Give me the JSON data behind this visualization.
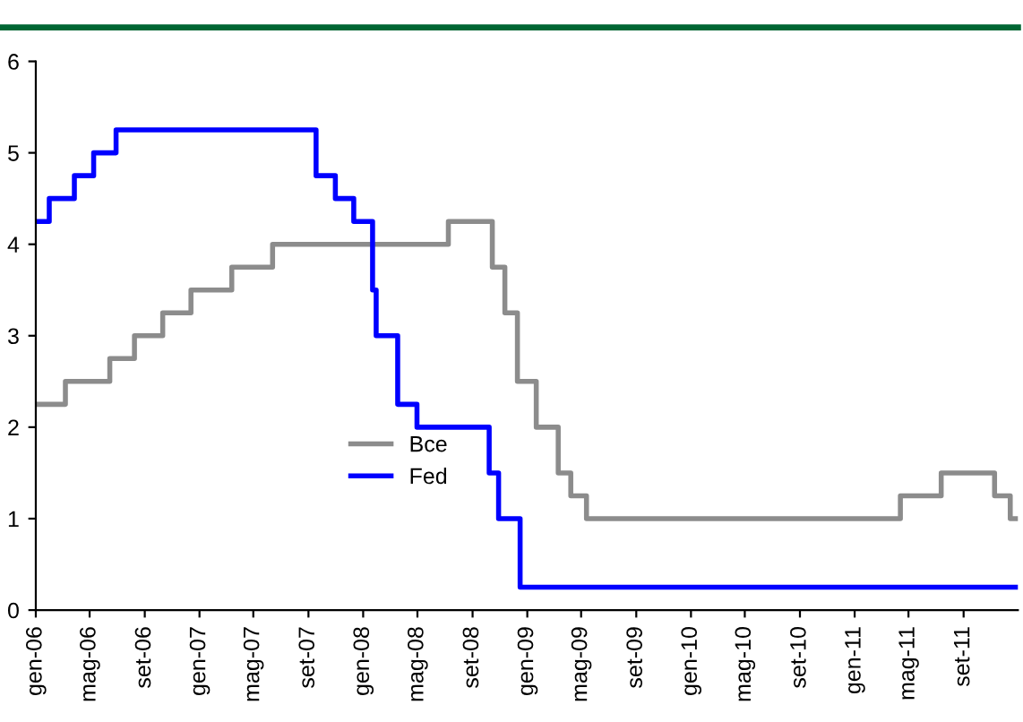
{
  "chart_data": {
    "type": "step",
    "series": [
      {
        "name": "Bce",
        "color": "#8c8c8c",
        "x": [
          "2006-01-01",
          "2006-03-08",
          "2006-06-15",
          "2006-08-09",
          "2006-10-11",
          "2006-12-13",
          "2007-03-14",
          "2007-06-13",
          "2008-07-09",
          "2008-10-15",
          "2008-11-12",
          "2008-12-10",
          "2009-01-21",
          "2009-03-11",
          "2009-04-08",
          "2009-05-13",
          "2011-04-13",
          "2011-07-13",
          "2011-11-09",
          "2011-12-14",
          "2011-12-31"
        ],
        "values": [
          2.25,
          2.5,
          2.75,
          3.0,
          3.25,
          3.5,
          3.75,
          4.0,
          4.25,
          3.75,
          3.25,
          2.5,
          2.0,
          1.5,
          1.25,
          1.0,
          1.25,
          1.5,
          1.25,
          1.0,
          1.0
        ]
      },
      {
        "name": "Fed",
        "color": "#0000ff",
        "x": [
          "2006-01-01",
          "2006-01-31",
          "2006-03-28",
          "2006-05-10",
          "2006-06-29",
          "2007-09-18",
          "2007-10-31",
          "2007-12-11",
          "2008-01-22",
          "2008-01-30",
          "2008-03-18",
          "2008-04-30",
          "2008-10-08",
          "2008-10-29",
          "2008-12-16",
          "2011-12-31"
        ],
        "values": [
          4.25,
          4.5,
          4.75,
          5.0,
          5.25,
          4.75,
          4.5,
          4.25,
          3.5,
          3.0,
          2.25,
          2.0,
          1.5,
          1.0,
          0.25,
          0.25
        ]
      }
    ],
    "xlim": [
      "2006-01-01",
      "2011-12-31"
    ],
    "xticks": [
      {
        "value": "2006-01-01",
        "label": "gen-06"
      },
      {
        "value": "2006-05-01",
        "label": "mag-06"
      },
      {
        "value": "2006-09-01",
        "label": "set-06"
      },
      {
        "value": "2007-01-01",
        "label": "gen-07"
      },
      {
        "value": "2007-05-01",
        "label": "mag-07"
      },
      {
        "value": "2007-09-01",
        "label": "set-07"
      },
      {
        "value": "2008-01-01",
        "label": "gen-08"
      },
      {
        "value": "2008-05-01",
        "label": "mag-08"
      },
      {
        "value": "2008-09-01",
        "label": "set-08"
      },
      {
        "value": "2009-01-01",
        "label": "gen-09"
      },
      {
        "value": "2009-05-01",
        "label": "mag-09"
      },
      {
        "value": "2009-09-01",
        "label": "set-09"
      },
      {
        "value": "2010-01-01",
        "label": "gen-10"
      },
      {
        "value": "2010-05-01",
        "label": "mag-10"
      },
      {
        "value": "2010-09-01",
        "label": "set-10"
      },
      {
        "value": "2011-01-01",
        "label": "gen-11"
      },
      {
        "value": "2011-05-01",
        "label": "mag-11"
      },
      {
        "value": "2011-09-01",
        "label": "set-11"
      }
    ],
    "ylim": [
      0,
      6
    ],
    "yticks": [
      0,
      1,
      2,
      3,
      4,
      5,
      6
    ],
    "grid": false,
    "legend": "center",
    "line_style": "solid",
    "marker": "none"
  }
}
